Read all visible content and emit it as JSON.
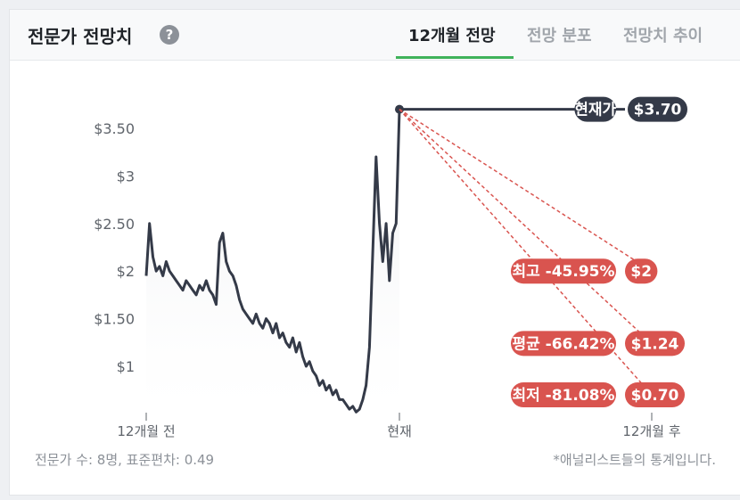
{
  "header": {
    "title": "전문가 전망치",
    "help_icon": "?",
    "tabs": [
      {
        "label": "12개월 전망",
        "active": true
      },
      {
        "label": "전망 분포",
        "active": false
      },
      {
        "label": "전망치 추이",
        "active": false
      }
    ]
  },
  "footer": {
    "analysts": "전문가 수: 8명, 표준편차: 0.49",
    "note": "*애널리스트들의 통계입니다."
  },
  "colors": {
    "line": "#343a48",
    "target": "#d9544f",
    "accent": "#3fb25a"
  },
  "chart_data": {
    "type": "line",
    "x_tick_labels": [
      "12개월 전",
      "현재",
      "12개월 후"
    ],
    "y_tick_labels": [
      "$3.50",
      "$3",
      "$2.50",
      "$2",
      "$1.50",
      "$1"
    ],
    "y_ticks": [
      3.5,
      3,
      2.5,
      2,
      1.5,
      1
    ],
    "ylim": [
      0.45,
      3.8
    ],
    "grid": false,
    "series": [
      {
        "values": [
          1.95,
          2.5,
          2.15,
          2.0,
          2.05,
          1.95,
          2.1,
          2.0,
          1.95,
          1.9,
          1.85,
          1.8,
          1.9,
          1.85,
          1.8,
          1.75,
          1.85,
          1.8,
          1.9,
          1.8,
          1.75,
          1.65,
          2.3,
          2.4,
          2.1,
          2.0,
          1.95,
          1.85,
          1.7,
          1.6,
          1.55,
          1.5,
          1.45,
          1.55,
          1.45,
          1.4,
          1.5,
          1.45,
          1.35,
          1.45,
          1.3,
          1.35,
          1.25,
          1.2,
          1.3,
          1.15,
          1.25,
          1.1,
          1.0,
          1.05,
          0.95,
          0.9,
          0.8,
          0.85,
          0.75,
          0.8,
          0.7,
          0.75,
          0.65,
          0.65,
          0.6,
          0.55,
          0.58,
          0.52,
          0.55,
          0.65,
          0.8,
          1.2,
          2.2,
          3.2,
          2.5,
          2.1,
          2.5,
          1.9,
          2.4,
          2.5,
          3.7
        ]
      }
    ],
    "current_price": {
      "label": "현재가",
      "value": 3.7,
      "value_label": "$3.70"
    },
    "targets": [
      {
        "label": "최고 -45.95%",
        "value": 2.0,
        "value_label": "$2"
      },
      {
        "label": "평균 -66.42%",
        "value": 1.24,
        "value_label": "$1.24"
      },
      {
        "label": "최저 -81.08%",
        "value": 0.7,
        "value_label": "$0.70"
      }
    ]
  }
}
